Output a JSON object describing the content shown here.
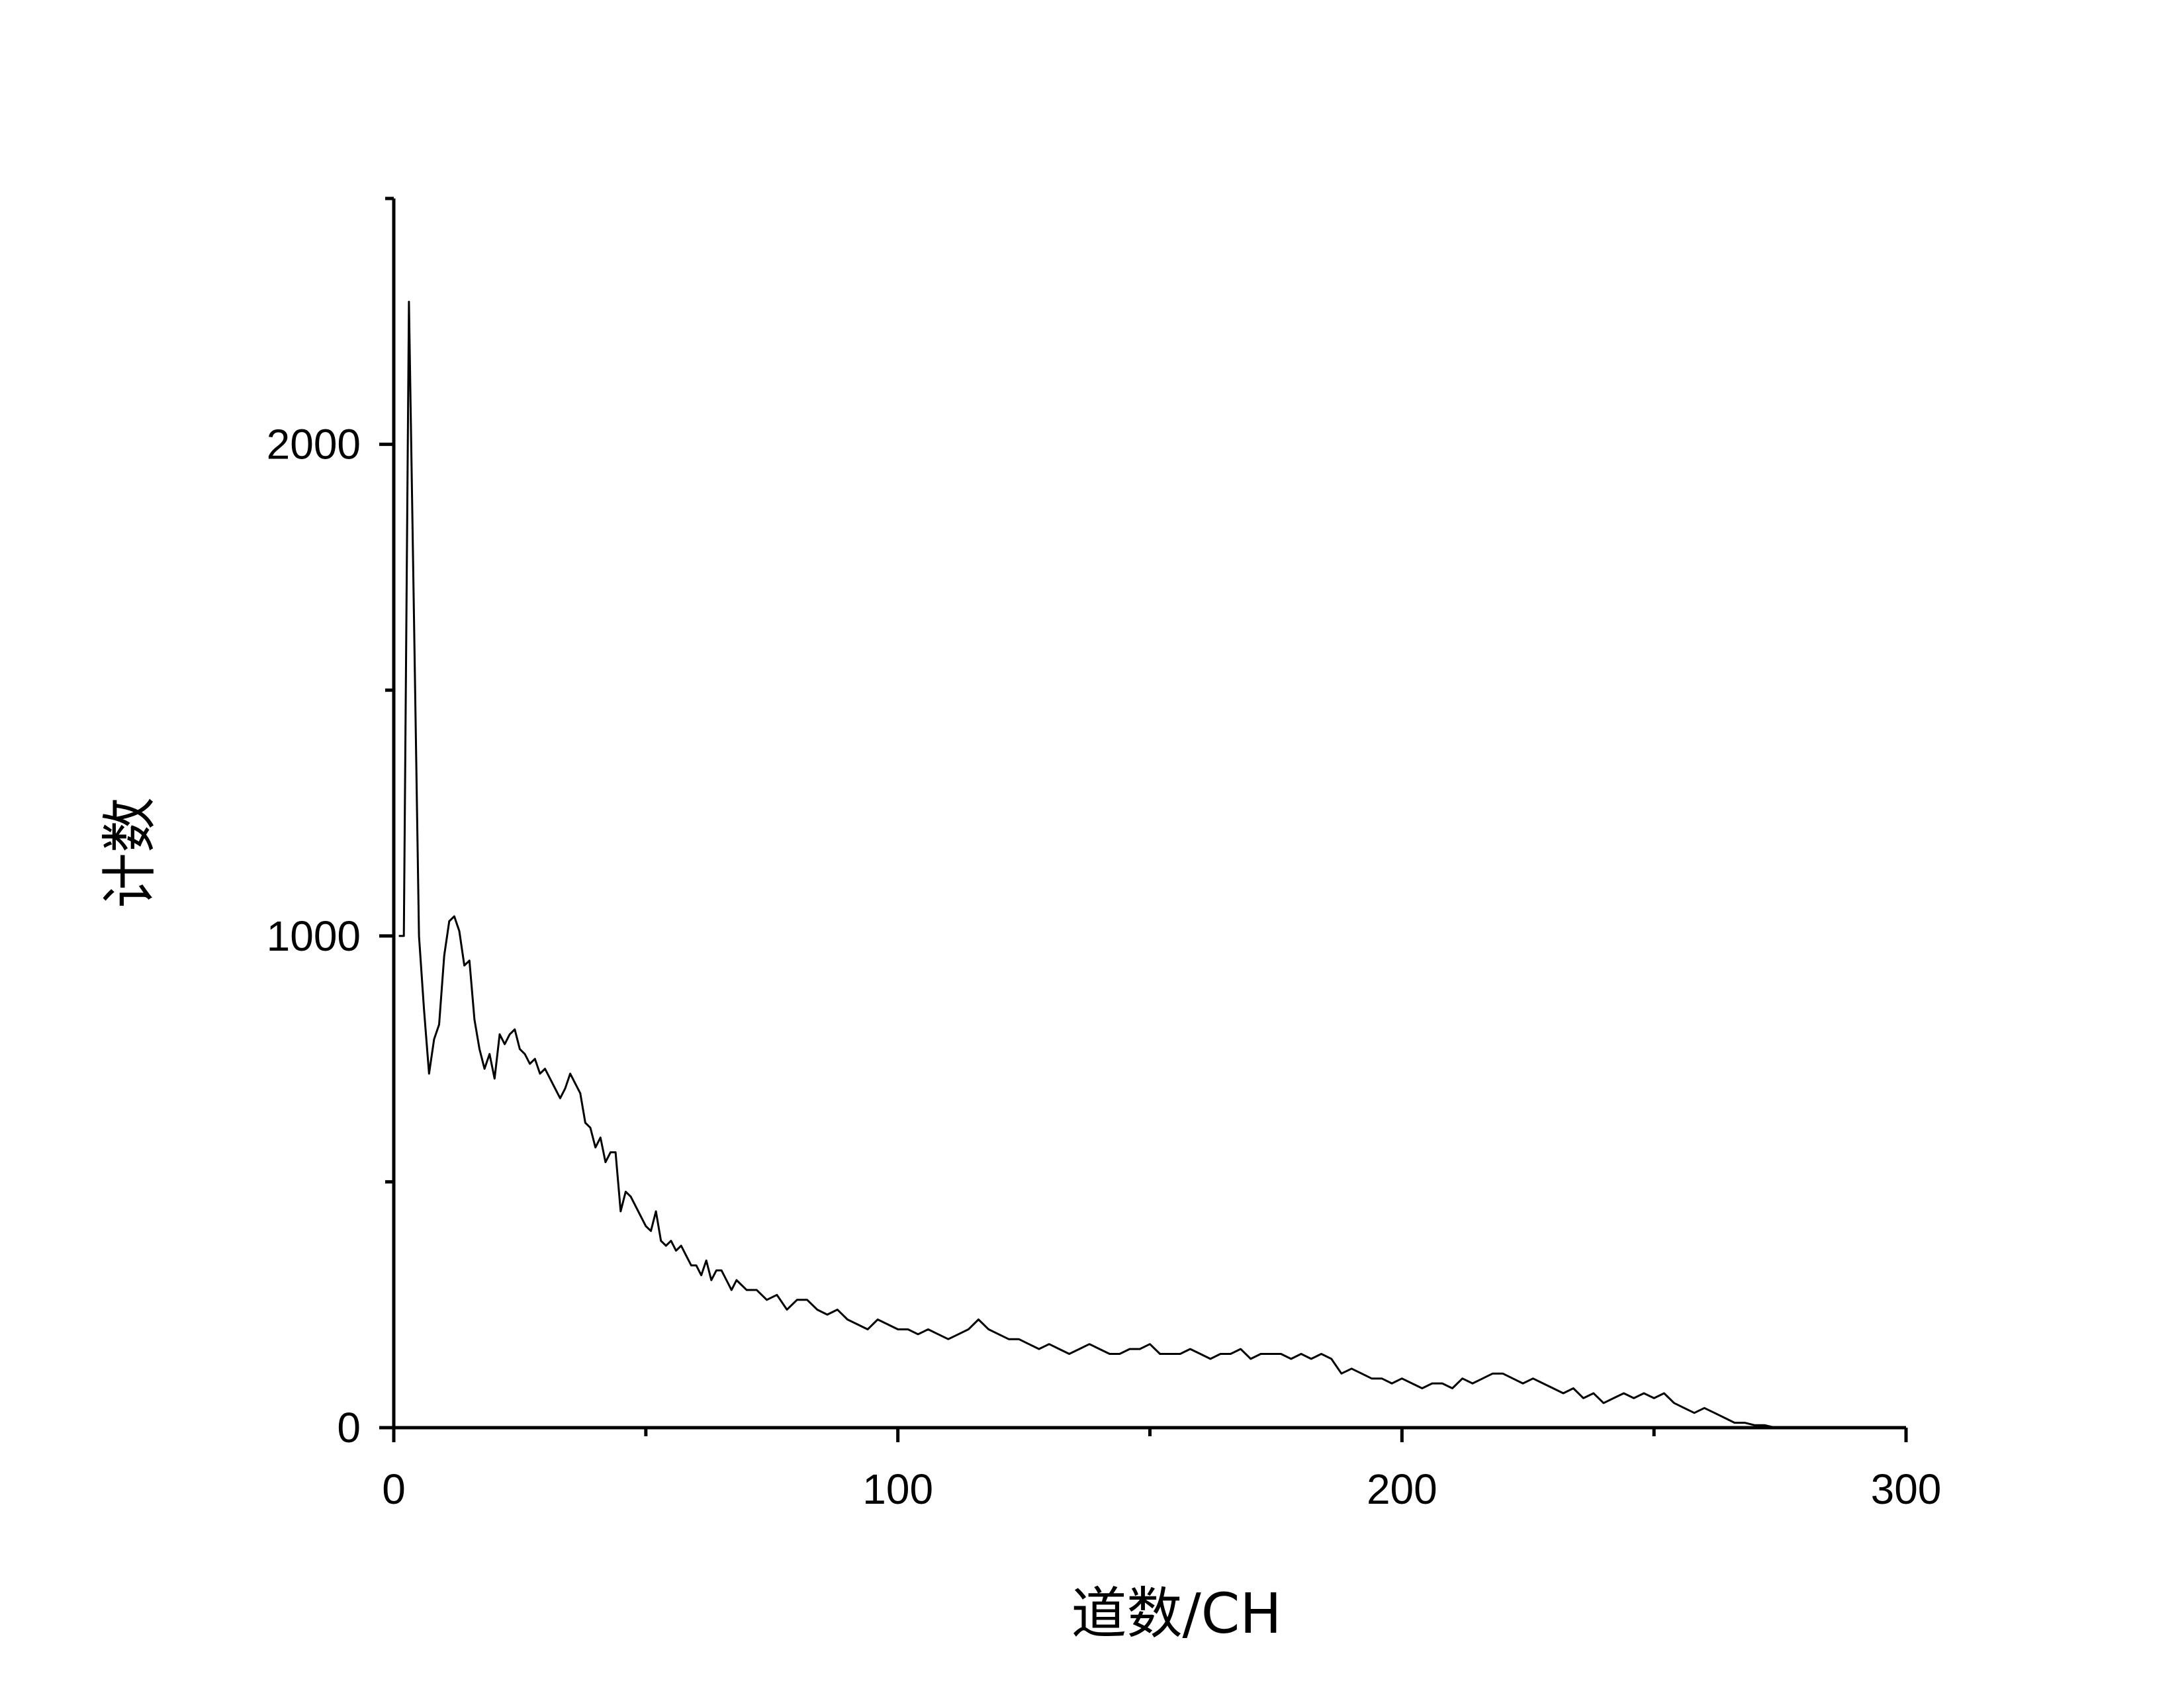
{
  "chart_data": {
    "type": "line",
    "title": "",
    "xlabel": "道数/CH",
    "ylabel": "计数",
    "xlim": [
      0,
      300
    ],
    "ylim": [
      0,
      2500
    ],
    "x_ticks_major": [
      0,
      100,
      200,
      300
    ],
    "x_ticks_minor": [
      50,
      150,
      250
    ],
    "y_ticks_major": [
      0,
      1000,
      2000
    ],
    "y_ticks_minor": [
      500,
      1500,
      2500
    ],
    "x_tick_labels": [
      "0",
      "100",
      "200",
      "300"
    ],
    "y_tick_labels": [
      "0",
      "1000",
      "2000"
    ],
    "grid": false,
    "legend": "none",
    "line_color": "#000000",
    "series": [
      {
        "x": [
          1,
          2,
          3,
          4,
          5,
          6,
          7,
          8,
          9,
          10,
          11,
          12,
          13,
          14,
          15,
          16,
          17,
          18,
          19,
          20,
          21,
          22,
          23,
          24,
          25,
          26,
          27,
          28,
          29,
          30,
          31,
          32,
          33,
          34,
          35,
          36,
          37,
          38,
          39,
          40,
          41,
          42,
          43,
          44,
          45,
          46,
          47,
          48,
          49,
          50,
          51,
          52,
          53,
          54,
          55,
          56,
          57,
          58,
          59,
          60,
          61,
          62,
          63,
          64,
          65,
          66,
          67,
          68,
          69,
          70,
          72,
          74,
          76,
          78,
          80,
          82,
          84,
          86,
          88,
          90,
          92,
          94,
          96,
          98,
          100,
          102,
          104,
          106,
          108,
          110,
          112,
          114,
          116,
          118,
          120,
          122,
          124,
          126,
          128,
          130,
          132,
          134,
          136,
          138,
          140,
          142,
          144,
          146,
          148,
          150,
          152,
          154,
          156,
          158,
          160,
          162,
          164,
          166,
          168,
          170,
          172,
          174,
          176,
          178,
          180,
          182,
          184,
          186,
          188,
          190,
          192,
          194,
          196,
          198,
          200,
          202,
          204,
          206,
          208,
          210,
          212,
          214,
          216,
          218,
          220,
          222,
          224,
          226,
          228,
          230,
          232,
          234,
          236,
          238,
          240,
          242,
          244,
          246,
          248,
          250,
          252,
          254,
          256,
          258,
          260,
          262,
          264,
          266,
          268,
          270,
          272,
          274,
          276,
          278,
          280,
          282,
          284,
          286,
          288,
          290,
          292,
          294
        ],
        "y": [
          1000,
          1000,
          2290,
          1650,
          1000,
          850,
          720,
          790,
          820,
          960,
          1030,
          1040,
          1010,
          940,
          950,
          830,
          770,
          730,
          760,
          710,
          800,
          780,
          800,
          810,
          770,
          760,
          740,
          750,
          720,
          730,
          710,
          690,
          670,
          690,
          720,
          700,
          680,
          620,
          610,
          570,
          590,
          540,
          560,
          560,
          440,
          480,
          470,
          450,
          430,
          410,
          400,
          440,
          380,
          370,
          380,
          360,
          370,
          350,
          330,
          330,
          310,
          340,
          300,
          320,
          320,
          300,
          280,
          300,
          290,
          280,
          280,
          260,
          270,
          240,
          260,
          260,
          240,
          230,
          240,
          220,
          210,
          200,
          220,
          210,
          200,
          200,
          190,
          200,
          190,
          180,
          190,
          200,
          220,
          200,
          190,
          180,
          180,
          170,
          160,
          170,
          160,
          150,
          160,
          170,
          160,
          150,
          150,
          160,
          160,
          170,
          150,
          150,
          150,
          160,
          150,
          140,
          150,
          150,
          160,
          140,
          150,
          150,
          150,
          140,
          150,
          140,
          150,
          140,
          110,
          120,
          110,
          100,
          100,
          90,
          100,
          90,
          80,
          90,
          90,
          80,
          100,
          90,
          100,
          110,
          110,
          100,
          90,
          100,
          90,
          80,
          70,
          80,
          60,
          70,
          50,
          60,
          70,
          60,
          70,
          60,
          70,
          50,
          40,
          30,
          40,
          30,
          20,
          10,
          10,
          5,
          5,
          0,
          0,
          0,
          0,
          0,
          0,
          0,
          0,
          0,
          0,
          0
        ]
      }
    ]
  }
}
